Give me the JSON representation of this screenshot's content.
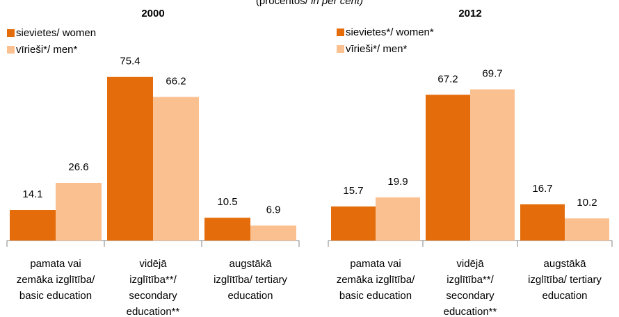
{
  "subtitle": {
    "main": "(procentos/ ",
    "italic": "in per cent)"
  },
  "chart_data": [
    {
      "type": "bar",
      "title": "2000",
      "categories": [
        [
          "pamata vai",
          "zemāka izglītība/",
          "basic education"
        ],
        [
          "vidējā",
          "izglītība**/",
          "secondary",
          "education**"
        ],
        [
          "augstākā",
          "izglītība/ tertiary",
          "education"
        ]
      ],
      "series": [
        {
          "name": "sievietes/ women",
          "color": "#e46c0a",
          "values": [
            14.1,
            75.4,
            10.5
          ]
        },
        {
          "name": "vīrieši*/ men*",
          "color": "#fac090",
          "values": [
            26.6,
            66.2,
            6.9
          ]
        }
      ]
    },
    {
      "type": "bar",
      "title": "2012",
      "categories": [
        [
          "pamata vai",
          "zemāka izglītība/",
          "basic education"
        ],
        [
          "vidējā",
          "izglītība**/",
          "secondary",
          "education**"
        ],
        [
          "augstākā",
          "izglītība/ tertiary",
          "education"
        ]
      ],
      "series": [
        {
          "name": "sievietes*/ women*",
          "color": "#e46c0a",
          "values": [
            15.7,
            67.2,
            16.7
          ]
        },
        {
          "name": "vīrieši*/ men*",
          "color": "#fac090",
          "values": [
            19.9,
            69.7,
            10.2
          ]
        }
      ]
    }
  ]
}
